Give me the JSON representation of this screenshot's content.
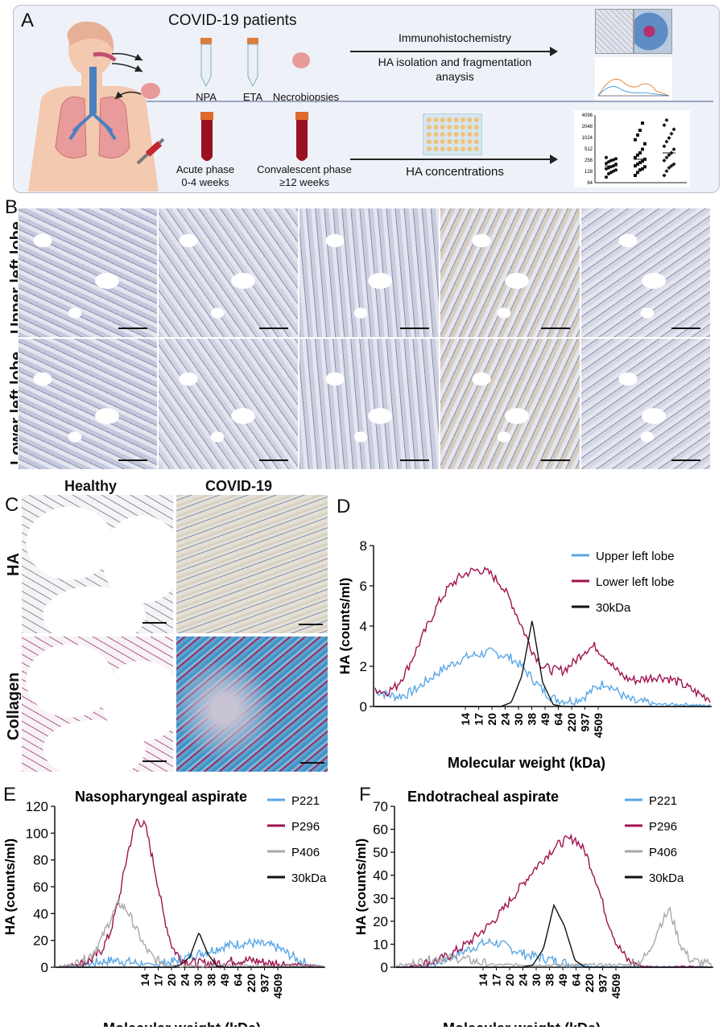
{
  "panels": {
    "a": "A",
    "b": "B",
    "c": "C",
    "d": "D",
    "e": "E",
    "f": "F"
  },
  "panelA": {
    "title": "COVID-19 patients",
    "samples": [
      "NPA",
      "ETA",
      "Necrobiopsies"
    ],
    "arrow1_line1": "Immunohistochemistry",
    "arrow1_line2": "HA isolation and fragmentation",
    "arrow1_line3": "anaysis",
    "acute_line1": "Acute phase",
    "acute_line2": "0-4 weeks",
    "conv_line1": "Convalescent phase",
    "conv_line2": "≥12 weeks",
    "arrow2": "HA concentrations",
    "dot_yticks": [
      "4096",
      "2048",
      "1024",
      "512",
      "256",
      "128",
      "64"
    ],
    "dot_groups": [
      [
        90,
        110,
        120,
        130,
        140,
        150,
        160,
        170,
        180,
        200,
        210,
        230,
        250,
        260,
        280,
        300
      ],
      [
        100,
        120,
        140,
        150,
        170,
        180,
        200,
        220,
        240,
        270,
        300,
        350,
        400,
        500,
        700,
        900,
        1200,
        1600,
        2500
      ],
      [
        100,
        130,
        160,
        180,
        200,
        250,
        300,
        350,
        400,
        500,
        600,
        800,
        1000,
        1300,
        1700,
        2200,
        3000
      ]
    ]
  },
  "panelB": {
    "row_labels": [
      "Upper left lobe",
      "Lower left lobe"
    ]
  },
  "panelC": {
    "col_labels": [
      "Healthy",
      "COVID-19"
    ],
    "row_labels": [
      "HA",
      "Collagen"
    ]
  },
  "colors": {
    "blue": "#5aa7e6",
    "crimson": "#a0124f",
    "gray": "#a8a8a8",
    "black": "#111111"
  },
  "chart_data": [
    {
      "id": "D",
      "type": "line",
      "title": "",
      "xlabel": "Molecular weight (kDa)",
      "ylabel": "HA (counts/ml)",
      "ylim": [
        0,
        8
      ],
      "yticks": [
        "0",
        "2",
        "4",
        "6",
        "8"
      ],
      "xtick_labels": [
        "14",
        "17",
        "20",
        "24",
        "30",
        "38",
        "49",
        "64",
        "220",
        "937",
        "4509"
      ],
      "legend": "top-right",
      "series": [
        {
          "name": "Upper left lobe",
          "color": "#5aa7e6",
          "values": [
            0.8,
            0.6,
            0.5,
            0.6,
            0.9,
            1.3,
            1.7,
            2.0,
            2.3,
            2.5,
            2.6,
            2.7,
            2.6,
            2.4,
            2.0,
            1.4,
            0.8,
            0.4,
            0.3,
            0.3,
            0.5,
            0.9,
            1.2,
            0.8,
            0.4,
            0.2,
            0.2,
            0.1,
            0.1,
            0.1,
            0.1,
            0.05,
            0.05
          ]
        },
        {
          "name": "Lower left lobe",
          "color": "#a0124f",
          "values": [
            0.9,
            0.7,
            1.0,
            1.8,
            2.9,
            4.0,
            5.1,
            5.9,
            6.4,
            6.7,
            6.8,
            6.6,
            6.1,
            5.2,
            4.0,
            2.8,
            2.0,
            1.8,
            1.8,
            2.2,
            2.8,
            3.0,
            2.5,
            1.8,
            1.4,
            1.3,
            1.4,
            1.5,
            1.4,
            1.2,
            0.9,
            0.6,
            0.4
          ]
        },
        {
          "name": "30kDa",
          "color": "#111111",
          "values": [
            0,
            0,
            0,
            0,
            0,
            0,
            0,
            0,
            0,
            0,
            0,
            0,
            0,
            0.2,
            1.5,
            4.3,
            1.2,
            0.1,
            0,
            0,
            0,
            0,
            0,
            0,
            0,
            0,
            0,
            0,
            0,
            0,
            0,
            0,
            0
          ]
        }
      ]
    },
    {
      "id": "E",
      "type": "line",
      "title": "Nasopharyngeal aspirate",
      "xlabel": "Molecular weight (kDa)",
      "ylabel": "HA (counts/ml)",
      "ylim": [
        0,
        120
      ],
      "yticks": [
        "0",
        "20",
        "40",
        "60",
        "80",
        "100",
        "120"
      ],
      "xtick_labels": [
        "14",
        "17",
        "20",
        "24",
        "30",
        "38",
        "49",
        "64",
        "220",
        "937",
        "4509"
      ],
      "legend": "top-right",
      "series": [
        {
          "name": "P221",
          "color": "#5aa7e6",
          "values": [
            0,
            0,
            1,
            2,
            3,
            4,
            5,
            5,
            4,
            3,
            2,
            2,
            3,
            4,
            6,
            8,
            10,
            12,
            14,
            16,
            17,
            18,
            18,
            17,
            16,
            14,
            10,
            6,
            3,
            1,
            0
          ]
        },
        {
          "name": "P296",
          "color": "#a0124f",
          "values": [
            0,
            1,
            2,
            3,
            6,
            12,
            25,
            50,
            85,
            110,
            105,
            75,
            40,
            15,
            6,
            4,
            3,
            3,
            3,
            4,
            5,
            5,
            5,
            4,
            3,
            3,
            2,
            2,
            1,
            1,
            0
          ]
        },
        {
          "name": "P406",
          "color": "#a8a8a8",
          "values": [
            0,
            1,
            2,
            5,
            10,
            20,
            35,
            48,
            42,
            28,
            14,
            6,
            3,
            2,
            1,
            1,
            1,
            1,
            1,
            1,
            1,
            1,
            1,
            1,
            1,
            1,
            1,
            1,
            1,
            1,
            0
          ]
        },
        {
          "name": "30kDa",
          "color": "#111111",
          "values": [
            0,
            0,
            0,
            0,
            0,
            0,
            0,
            0,
            0,
            0,
            0,
            0,
            0,
            0,
            2,
            8,
            26,
            10,
            1,
            0,
            0,
            0,
            0,
            0,
            0,
            0,
            0,
            0,
            0,
            0,
            0
          ]
        }
      ]
    },
    {
      "id": "F",
      "type": "line",
      "title": "Endotracheal aspirate",
      "xlabel": "Molecular weight (kDa)",
      "ylabel": "HA (counts/ml)",
      "ylim": [
        0,
        70
      ],
      "yticks": [
        "0",
        "10",
        "20",
        "30",
        "40",
        "50",
        "60",
        "70"
      ],
      "xtick_labels": [
        "14",
        "17",
        "20",
        "24",
        "30",
        "38",
        "49",
        "64",
        "220",
        "937",
        "4509"
      ],
      "legend": "top-right",
      "series": [
        {
          "name": "P221",
          "color": "#5aa7e6",
          "values": [
            0,
            0,
            0,
            1,
            2,
            4,
            6,
            8,
            10,
            11,
            10,
            8,
            6,
            5,
            4,
            3,
            2,
            1,
            1,
            0,
            0,
            0,
            0,
            0,
            0,
            0,
            0,
            0,
            0,
            0,
            0
          ]
        },
        {
          "name": "P296",
          "color": "#a0124f",
          "values": [
            0,
            0,
            1,
            2,
            3,
            5,
            8,
            11,
            15,
            19,
            24,
            30,
            36,
            42,
            47,
            52,
            55,
            56,
            50,
            38,
            22,
            10,
            3,
            1,
            0,
            0,
            0,
            0,
            0,
            0,
            0
          ]
        },
        {
          "name": "P406",
          "color": "#a8a8a8",
          "values": [
            1,
            1,
            2,
            3,
            4,
            4,
            4,
            3,
            2,
            1,
            1,
            1,
            1,
            1,
            1,
            1,
            1,
            1,
            1,
            1,
            1,
            1,
            1,
            2,
            6,
            18,
            25,
            10,
            3,
            2,
            1
          ]
        },
        {
          "name": "30kDa",
          "color": "#111111",
          "values": [
            0,
            0,
            0,
            0,
            0,
            0,
            0,
            0,
            0,
            0,
            0,
            0,
            0,
            1,
            8,
            27,
            18,
            3,
            0,
            0,
            0,
            0,
            0,
            0,
            0,
            0,
            0,
            0,
            0,
            0,
            0
          ]
        }
      ]
    }
  ]
}
